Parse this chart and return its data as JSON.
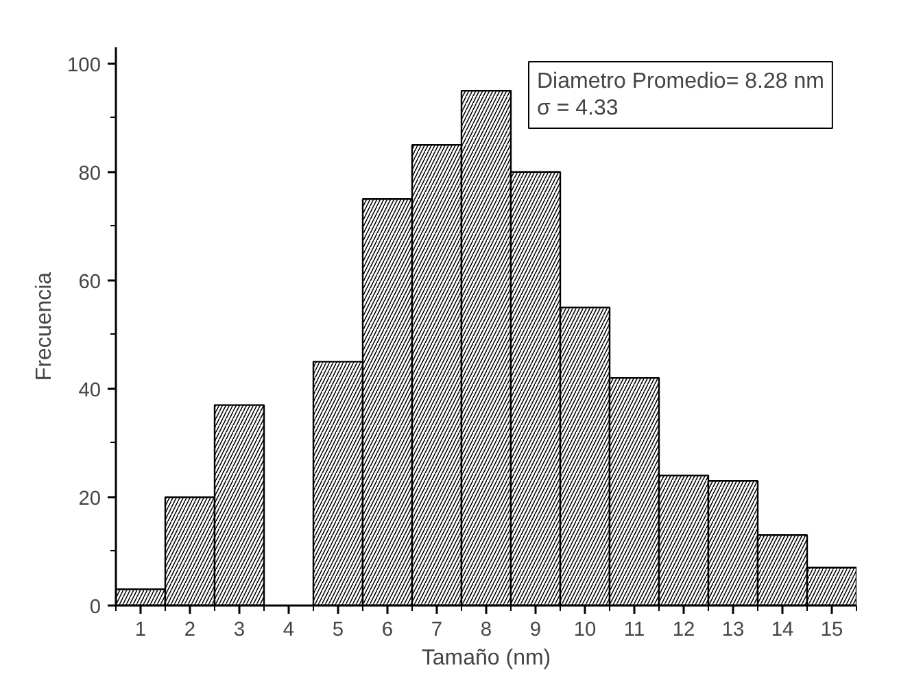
{
  "chart_data": {
    "type": "histogram",
    "xlabel": "Tamaño (nm)",
    "ylabel": "Frecuencia",
    "bins": [
      0.5,
      1.5,
      2.5,
      3.5,
      4.5,
      5.5,
      6.5,
      7.5,
      8.5,
      9.5,
      10.5,
      11.5,
      12.5,
      13.5,
      14.5,
      15.5
    ],
    "values": [
      3,
      20,
      37,
      0,
      45,
      75,
      85,
      95,
      80,
      55,
      42,
      24,
      23,
      13,
      7
    ],
    "color": "#ffffff",
    "xlim": [
      0.5,
      15.5
    ],
    "xticks": [
      1,
      2,
      3,
      4,
      5,
      6,
      7,
      8,
      9,
      10,
      11,
      12,
      13,
      14,
      15
    ],
    "ylim": [
      0,
      103
    ],
    "yticks": [
      0,
      20,
      40,
      60,
      80,
      100
    ],
    "grid": false,
    "annotations": [
      "Diametro Promedio= 8.28 nm",
      "σ = 4.33"
    ]
  }
}
